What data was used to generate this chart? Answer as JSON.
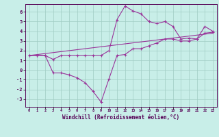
{
  "xlabel": "Windchill (Refroidissement éolien,°C)",
  "background_color": "#c8eee8",
  "grid_color": "#a0ccc4",
  "line_color": "#993399",
  "xlim": [
    -0.5,
    23.5
  ],
  "ylim": [
    -3.8,
    6.8
  ],
  "yticks": [
    -3,
    -2,
    -1,
    0,
    1,
    2,
    3,
    4,
    5,
    6
  ],
  "xticks": [
    0,
    1,
    2,
    3,
    4,
    5,
    6,
    7,
    8,
    9,
    10,
    11,
    12,
    13,
    14,
    15,
    16,
    17,
    18,
    19,
    20,
    21,
    22,
    23
  ],
  "hours": [
    0,
    1,
    2,
    3,
    4,
    5,
    6,
    7,
    8,
    9,
    10,
    11,
    12,
    13,
    14,
    15,
    16,
    17,
    18,
    19,
    20,
    21,
    22,
    23
  ],
  "temp": [
    1.5,
    1.5,
    1.5,
    1.1,
    1.5,
    1.5,
    1.5,
    1.5,
    1.5,
    1.5,
    2.0,
    5.2,
    6.6,
    6.1,
    5.8,
    5.0,
    4.8,
    5.0,
    4.5,
    3.2,
    3.3,
    3.2,
    4.5,
    4.0
  ],
  "windchill": [
    1.5,
    1.5,
    1.5,
    -0.3,
    -0.3,
    -0.5,
    -0.8,
    -1.3,
    -2.2,
    -3.3,
    -0.9,
    1.5,
    1.6,
    2.2,
    2.2,
    2.5,
    2.8,
    3.2,
    3.2,
    3.0,
    3.0,
    3.2,
    3.8,
    3.9
  ],
  "diagonal": [
    1.5,
    1.6,
    1.7,
    1.8,
    1.9,
    2.0,
    2.1,
    2.2,
    2.3,
    2.4,
    2.5,
    2.6,
    2.7,
    2.8,
    2.9,
    3.0,
    3.1,
    3.2,
    3.3,
    3.4,
    3.5,
    3.6,
    3.7,
    3.8
  ]
}
